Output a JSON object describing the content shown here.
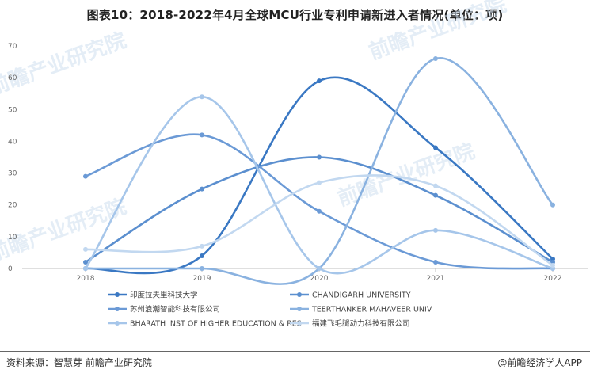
{
  "title": "图表10：2018-2022年4月全球MCU行业专利申请新进入者情况(单位：项)",
  "footer": {
    "source": "资料来源：智慧芽 前瞻产业研究院",
    "brand": "@前瞻经济学人APP"
  },
  "watermark": "前瞻产业研究院",
  "chart_data": {
    "type": "line",
    "smooth": true,
    "categories": [
      "2018",
      "2019",
      "2020",
      "2021",
      "2022"
    ],
    "ylim": [
      0,
      70
    ],
    "yticks": [
      0,
      10,
      20,
      30,
      40,
      50,
      60,
      70
    ],
    "grid": false,
    "legend_position": "bottom",
    "series": [
      {
        "name": "印度拉夫里科技大学",
        "values": [
          0,
          4,
          59,
          38,
          3
        ],
        "color": "#3a78c3"
      },
      {
        "name": "CHANDIGARH UNIVERSITY",
        "values": [
          2,
          25,
          35,
          23,
          2
        ],
        "color": "#5b8fcf"
      },
      {
        "name": "苏州浪潮智能科技有限公司",
        "values": [
          29,
          42,
          18,
          2,
          0
        ],
        "color": "#6b9ad6"
      },
      {
        "name": "TEERTHANKER MAHAVEER UNIV",
        "values": [
          0,
          0,
          0,
          66,
          20
        ],
        "color": "#8ab2e0"
      },
      {
        "name": "BHARATH INST OF HIGHER EDUCATION & RES",
        "values": [
          0,
          54,
          0,
          12,
          0
        ],
        "color": "#a6c6ea"
      },
      {
        "name": "福建飞毛腿动力科技有限公司",
        "values": [
          6,
          7,
          27,
          26,
          1
        ],
        "color": "#c2d8f0"
      }
    ]
  }
}
